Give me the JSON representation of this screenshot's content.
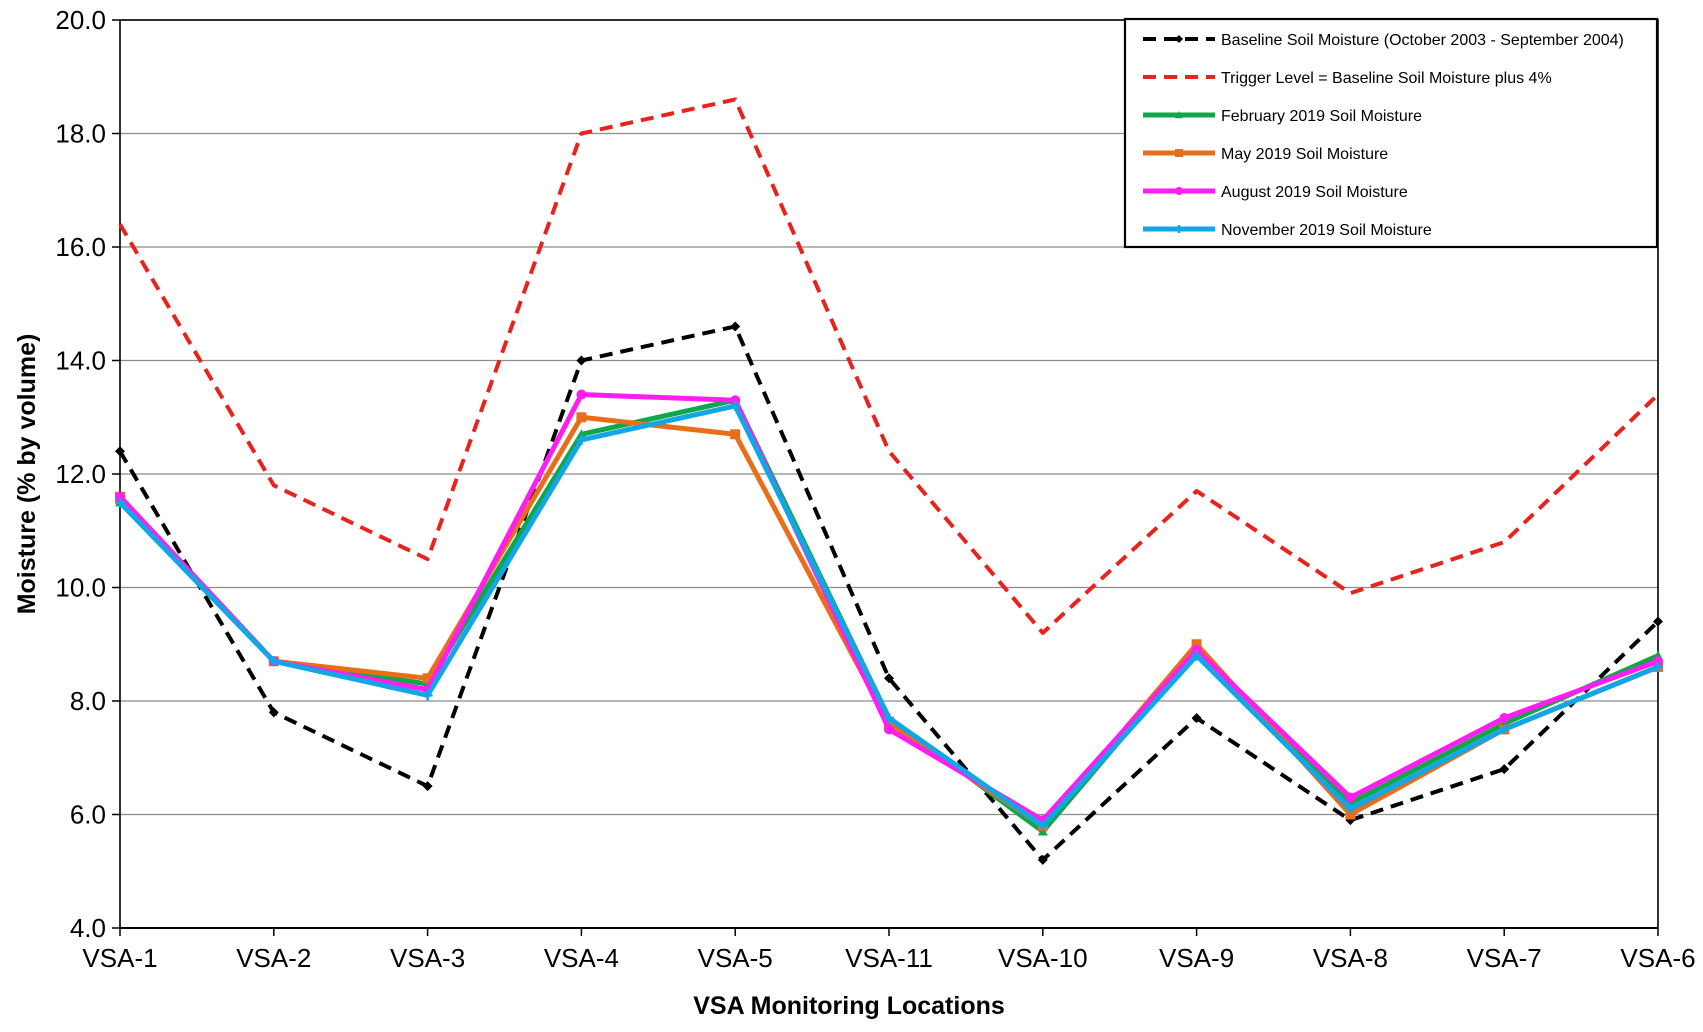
{
  "chart_data": {
    "type": "line",
    "title": "",
    "xlabel": "VSA Monitoring Locations",
    "ylabel": "Moisture (% by volume)",
    "ylim": [
      4.0,
      20.0
    ],
    "yticks": [
      "4.0",
      "6.0",
      "8.0",
      "10.0",
      "12.0",
      "14.0",
      "16.0",
      "18.0",
      "20.0"
    ],
    "grid": "horizontal",
    "legend_position": "top-right",
    "categories": [
      "VSA-1",
      "VSA-2",
      "VSA-3",
      "VSA-4",
      "VSA-5",
      "VSA-11",
      "VSA-10",
      "VSA-9",
      "VSA-8",
      "VSA-7",
      "VSA-6"
    ],
    "series": [
      {
        "name": "Baseline Soil Moisture (October 2003 - September 2004)",
        "color": "#000000",
        "style": "dashed",
        "marker": "diamond",
        "values": [
          12.4,
          7.8,
          6.5,
          14.0,
          14.6,
          8.4,
          5.2,
          7.7,
          5.9,
          6.8,
          9.4
        ]
      },
      {
        "name": "Trigger Level = Baseline Soil Moisture plus 4%",
        "color": "#e8231e",
        "style": "dashed",
        "marker": "none",
        "values": [
          16.4,
          11.8,
          10.5,
          18.0,
          18.6,
          12.4,
          9.2,
          11.7,
          9.9,
          10.8,
          13.4
        ]
      },
      {
        "name": "February 2019  Soil Moisture",
        "color": "#10a64a",
        "style": "solid",
        "marker": "triangle",
        "values": [
          11.5,
          8.7,
          8.3,
          12.7,
          13.3,
          7.7,
          5.7,
          8.9,
          6.2,
          7.6,
          8.8
        ]
      },
      {
        "name": "May 2019  Soil Moisture",
        "color": "#e86e1a",
        "style": "solid",
        "marker": "square",
        "values": [
          11.6,
          8.7,
          8.4,
          13.0,
          12.7,
          7.6,
          5.8,
          9.0,
          6.0,
          7.5,
          8.6
        ]
      },
      {
        "name": "August 2019  Soil Moisture",
        "color": "#ff1ef0",
        "style": "solid",
        "marker": "circle",
        "values": [
          11.6,
          8.7,
          8.2,
          13.4,
          13.3,
          7.5,
          5.9,
          8.9,
          6.3,
          7.7,
          8.7
        ]
      },
      {
        "name": "November 2019  Soil Moisture",
        "color": "#13a6e6",
        "style": "solid",
        "marker": "cross",
        "values": [
          11.5,
          8.7,
          8.1,
          12.6,
          13.2,
          7.7,
          5.8,
          8.8,
          6.1,
          7.5,
          8.6
        ]
      }
    ]
  }
}
